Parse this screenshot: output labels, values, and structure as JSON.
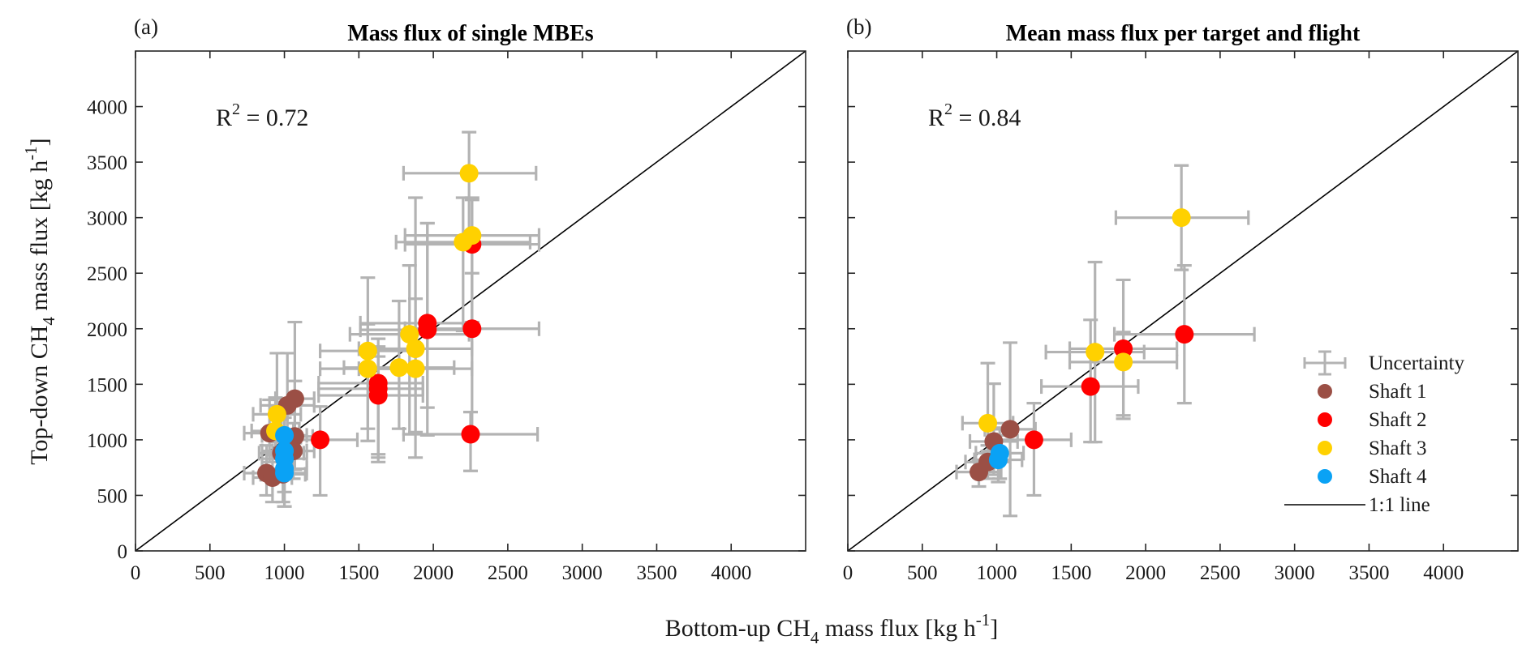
{
  "colors": {
    "shaft1": "#9B4F45",
    "shaft2": "#FF0000",
    "shaft3": "#FFD100",
    "shaft4": "#0AA2F5",
    "uncertainty": "#B3B3B3",
    "one_to_one": "#000000"
  },
  "axes": {
    "xlabel_pre": "Bottom-up CH",
    "xlabel_sub": "4",
    "xlabel_post": " mass flux [kg h",
    "xlabel_sup": "-1",
    "xlabel_end": "]",
    "ylabel_pre": "Top-down CH",
    "ylabel_sub": "4",
    "ylabel_post": " mass flux [kg h",
    "ylabel_sup": "-1",
    "ylabel_end": "]"
  },
  "legend": {
    "items": [
      {
        "key": "uncertainty",
        "label": "Uncertainty"
      },
      {
        "key": "shaft1",
        "label": "Shaft 1"
      },
      {
        "key": "shaft2",
        "label": "Shaft 2"
      },
      {
        "key": "shaft3",
        "label": "Shaft 3"
      },
      {
        "key": "shaft4",
        "label": "Shaft 4"
      },
      {
        "key": "one_to_one",
        "label": "1:1 line"
      }
    ]
  },
  "chart_data": [
    {
      "type": "scatter",
      "panel": "(a)",
      "title": "Mass flux of single MBEs",
      "annotation": {
        "r2_label": "R",
        "r2_sup": "2",
        "r2_value": " = 0.72"
      },
      "xlabel": "Bottom-up CH4 mass flux [kg h-1]",
      "ylabel": "Top-down CH4 mass flux [kg h-1]",
      "xlim": [
        0,
        4500
      ],
      "ylim": [
        0,
        4500
      ],
      "xticks": [
        0,
        500,
        1000,
        1500,
        2000,
        2500,
        3000,
        3500,
        4000
      ],
      "yticks": [
        0,
        500,
        1000,
        1500,
        2000,
        2500,
        3000,
        3500,
        4000
      ],
      "grid": false,
      "legend_position": "none",
      "reference_line": "1:1",
      "series": [
        {
          "name": "Shaft 1",
          "color_key": "shaft1",
          "points": [
            {
              "x": 880,
              "y": 700,
              "xerr": [
                150,
                150
              ],
              "yerr": [
                200,
                250
              ]
            },
            {
              "x": 920,
              "y": 660,
              "xerr": [
                130,
                130
              ],
              "yerr": [
                220,
                200
              ]
            },
            {
              "x": 990,
              "y": 690,
              "xerr": [
                150,
                150
              ],
              "yerr": [
                250,
                200
              ]
            },
            {
              "x": 900,
              "y": 1060,
              "xerr": [
                170,
                170
              ],
              "yerr": [
                260,
                300
              ]
            },
            {
              "x": 1070,
              "y": 1030,
              "xerr": [
                120,
                120
              ],
              "yerr": [
                300,
                500
              ]
            },
            {
              "x": 1060,
              "y": 900,
              "xerr": [
                140,
                140
              ],
              "yerr": [
                250,
                250
              ]
            },
            {
              "x": 1020,
              "y": 1310,
              "xerr": [
                180,
                180
              ],
              "yerr": [
                320,
                470
              ]
            },
            {
              "x": 1070,
              "y": 1370,
              "xerr": [
                130,
                130
              ],
              "yerr": [
                400,
                690
              ]
            },
            {
              "x": 980,
              "y": 880,
              "xerr": [
                150,
                150
              ],
              "yerr": [
                200,
                300
              ]
            }
          ]
        },
        {
          "name": "Shaft 2",
          "color_key": "shaft2",
          "points": [
            {
              "x": 1240,
              "y": 1000,
              "xerr": [
                250,
                250
              ],
              "yerr": [
                500,
                300
              ]
            },
            {
              "x": 1630,
              "y": 1400,
              "xerr": [
                400,
                300
              ],
              "yerr": [
                600,
                350
              ]
            },
            {
              "x": 1630,
              "y": 1460,
              "xerr": [
                400,
                300
              ],
              "yerr": [
                620,
                380
              ]
            },
            {
              "x": 1630,
              "y": 1510,
              "xerr": [
                400,
                300
              ],
              "yerr": [
                640,
                400
              ]
            },
            {
              "x": 1960,
              "y": 1990,
              "xerr": [
                450,
                300
              ],
              "yerr": [
                700,
                960
              ]
            },
            {
              "x": 1960,
              "y": 2050,
              "xerr": [
                450,
                300
              ],
              "yerr": [
                1010,
                900
              ]
            },
            {
              "x": 2260,
              "y": 2000,
              "xerr": [
                450,
                450
              ],
              "yerr": [
                950,
                500
              ]
            },
            {
              "x": 2250,
              "y": 1050,
              "xerr": [
                450,
                450
              ],
              "yerr": [
                330,
                200
              ]
            },
            {
              "x": 2260,
              "y": 2760,
              "xerr": [
                450,
                450
              ],
              "yerr": [
                700,
                400
              ]
            }
          ]
        },
        {
          "name": "Shaft 3",
          "color_key": "shaft3",
          "points": [
            {
              "x": 950,
              "y": 1230,
              "xerr": [
                160,
                160
              ],
              "yerr": [
                250,
                550
              ]
            },
            {
              "x": 940,
              "y": 1080,
              "xerr": [
                160,
                160
              ],
              "yerr": [
                250,
                300
              ]
            },
            {
              "x": 1560,
              "y": 1800,
              "xerr": [
                320,
                320
              ],
              "yerr": [
                700,
                660
              ]
            },
            {
              "x": 1560,
              "y": 1640,
              "xerr": [
                320,
                320
              ],
              "yerr": [
                650,
                400
              ]
            },
            {
              "x": 1770,
              "y": 1650,
              "xerr": [
                370,
                370
              ],
              "yerr": [
                550,
                600
              ]
            },
            {
              "x": 1840,
              "y": 1950,
              "xerr": [
                400,
                400
              ],
              "yerr": [
                900,
                620
              ]
            },
            {
              "x": 1880,
              "y": 1820,
              "xerr": [
                380,
                380
              ],
              "yerr": [
                750,
                450
              ]
            },
            {
              "x": 1880,
              "y": 1640,
              "xerr": [
                380,
                380
              ],
              "yerr": [
                800,
                1540
              ]
            },
            {
              "x": 2200,
              "y": 2780,
              "xerr": [
                450,
                450
              ],
              "yerr": [
                800,
                400
              ]
            },
            {
              "x": 2260,
              "y": 2840,
              "xerr": [
                450,
                450
              ],
              "yerr": [
                800,
                340
              ]
            },
            {
              "x": 2240,
              "y": 3400,
              "xerr": [
                440,
                450
              ],
              "yerr": [
                600,
                370
              ]
            }
          ]
        },
        {
          "name": "Shaft 4",
          "color_key": "shaft4",
          "points": [
            {
              "x": 1000,
              "y": 1040,
              "xerr": [
                150,
                150
              ],
              "yerr": [
                250,
                300
              ]
            },
            {
              "x": 1000,
              "y": 900,
              "xerr": [
                150,
                150
              ],
              "yerr": [
                250,
                300
              ]
            },
            {
              "x": 1000,
              "y": 830,
              "xerr": [
                150,
                150
              ],
              "yerr": [
                300,
                250
              ]
            },
            {
              "x": 1000,
              "y": 740,
              "xerr": [
                150,
                150
              ],
              "yerr": [
                340,
                200
              ]
            },
            {
              "x": 1000,
              "y": 700,
              "xerr": [
                150,
                150
              ],
              "yerr": [
                300,
                200
              ]
            }
          ]
        }
      ]
    },
    {
      "type": "scatter",
      "panel": "(b)",
      "title": "Mean mass flux per target and flight",
      "annotation": {
        "r2_label": "R",
        "r2_sup": "2",
        "r2_value": " = 0.84"
      },
      "xlabel": "Bottom-up CH4 mass flux [kg h-1]",
      "ylabel": "Top-down CH4 mass flux [kg h-1]",
      "xlim": [
        0,
        4500
      ],
      "ylim": [
        0,
        4500
      ],
      "xticks": [
        0,
        500,
        1000,
        1500,
        2000,
        2500,
        3000,
        3500,
        4000
      ],
      "yticks": [
        0,
        500,
        1000,
        1500,
        2000,
        2500,
        3000,
        3500,
        4000
      ],
      "grid": false,
      "legend_position": "bottom-right",
      "reference_line": "1:1",
      "series": [
        {
          "name": "Shaft 1",
          "color_key": "shaft1",
          "points": [
            {
              "x": 880,
              "y": 710,
              "xerr": [
                150,
                150
              ],
              "yerr": [
                130,
                110
              ]
            },
            {
              "x": 940,
              "y": 800,
              "xerr": [
                150,
                150
              ],
              "yerr": [
                150,
                150
              ]
            },
            {
              "x": 980,
              "y": 985,
              "xerr": [
                160,
                160
              ],
              "yerr": [
                300,
                520
              ]
            },
            {
              "x": 1090,
              "y": 1095,
              "xerr": [
                170,
                170
              ],
              "yerr": [
                780,
                780
              ]
            }
          ]
        },
        {
          "name": "Shaft 2",
          "color_key": "shaft2",
          "points": [
            {
              "x": 1250,
              "y": 1000,
              "xerr": [
                250,
                250
              ],
              "yerr": [
                500,
                330
              ]
            },
            {
              "x": 1630,
              "y": 1480,
              "xerr": [
                330,
                320
              ],
              "yerr": [
                500,
                600
              ]
            },
            {
              "x": 1850,
              "y": 1820,
              "xerr": [
                360,
                360
              ],
              "yerr": [
                600,
                620
              ]
            },
            {
              "x": 2260,
              "y": 1950,
              "xerr": [
                470,
                470
              ],
              "yerr": [
                620,
                620
              ]
            }
          ]
        },
        {
          "name": "Shaft 3",
          "color_key": "shaft3",
          "points": [
            {
              "x": 940,
              "y": 1150,
              "xerr": [
                170,
                170
              ],
              "yerr": [
                250,
                540
              ]
            },
            {
              "x": 1660,
              "y": 1790,
              "xerr": [
                330,
                330
              ],
              "yerr": [
                810,
                810
              ]
            },
            {
              "x": 1850,
              "y": 1700,
              "xerr": [
                360,
                360
              ],
              "yerr": [
                510,
                270
              ]
            },
            {
              "x": 2240,
              "y": 3000,
              "xerr": [
                440,
                450
              ],
              "yerr": [
                470,
                470
              ]
            }
          ]
        },
        {
          "name": "Shaft 4",
          "color_key": "shaft4",
          "points": [
            {
              "x": 1020,
              "y": 880,
              "xerr": [
                160,
                160
              ],
              "yerr": [
                230,
                230
              ]
            },
            {
              "x": 1010,
              "y": 820,
              "xerr": [
                160,
                160
              ],
              "yerr": [
                200,
                220
              ]
            }
          ]
        }
      ]
    }
  ]
}
